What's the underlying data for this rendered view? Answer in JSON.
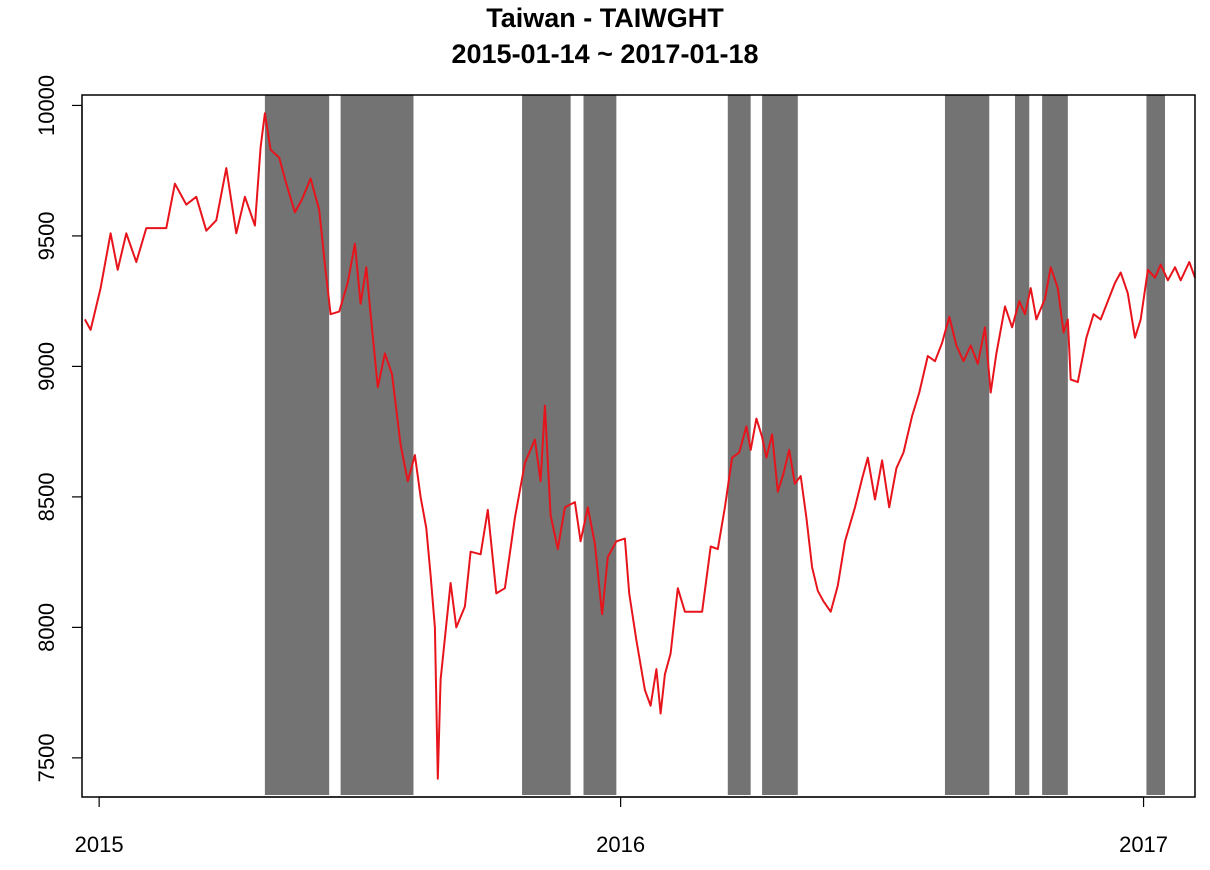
{
  "chart_data": {
    "type": "line",
    "title": "Taiwan - TAIWGHT",
    "subtitle": "2015-01-14 ~ 2017-01-18",
    "xlabel": "",
    "ylabel": "",
    "x_range": [
      "2014-12-20",
      "2017-02-06"
    ],
    "ylim": [
      7350,
      10040
    ],
    "y_ticks": [
      7500,
      8000,
      8500,
      9000,
      9500,
      10000
    ],
    "x_ticks": [
      {
        "date": "2015-01-01",
        "label": "2015"
      },
      {
        "date": "2016-01-01",
        "label": "2016"
      },
      {
        "date": "2017-01-01",
        "label": "2017"
      }
    ],
    "grid": false,
    "line_color": "#e8141c",
    "band_color": "#737373",
    "shaded_periods": [
      [
        "2015-04-27",
        "2015-06-11"
      ],
      [
        "2015-06-19",
        "2015-08-09"
      ],
      [
        "2015-10-24",
        "2015-11-27"
      ],
      [
        "2015-12-06",
        "2015-12-29"
      ],
      [
        "2016-03-16",
        "2016-04-01"
      ],
      [
        "2016-04-09",
        "2016-05-04"
      ],
      [
        "2016-08-15",
        "2016-09-15"
      ],
      [
        "2016-10-03",
        "2016-10-13"
      ],
      [
        "2016-10-22",
        "2016-11-09"
      ],
      [
        "2017-01-03",
        "2017-01-16"
      ]
    ],
    "series": [
      {
        "points": [
          [
            "2014-12-22",
            9180
          ],
          [
            "2014-12-26",
            9140
          ],
          [
            "2015-01-02",
            9300
          ],
          [
            "2015-01-09",
            9510
          ],
          [
            "2015-01-14",
            9370
          ],
          [
            "2015-01-20",
            9510
          ],
          [
            "2015-01-27",
            9400
          ],
          [
            "2015-02-03",
            9530
          ],
          [
            "2015-02-10",
            9530
          ],
          [
            "2015-02-17",
            9530
          ],
          [
            "2015-02-23",
            9700
          ],
          [
            "2015-03-03",
            9620
          ],
          [
            "2015-03-10",
            9650
          ],
          [
            "2015-03-17",
            9520
          ],
          [
            "2015-03-24",
            9560
          ],
          [
            "2015-03-31",
            9760
          ],
          [
            "2015-04-07",
            9510
          ],
          [
            "2015-04-13",
            9650
          ],
          [
            "2015-04-20",
            9540
          ],
          [
            "2015-04-24",
            9840
          ],
          [
            "2015-04-27",
            9970
          ],
          [
            "2015-05-01",
            9830
          ],
          [
            "2015-05-07",
            9800
          ],
          [
            "2015-05-12",
            9700
          ],
          [
            "2015-05-18",
            9590
          ],
          [
            "2015-05-23",
            9640
          ],
          [
            "2015-05-29",
            9720
          ],
          [
            "2015-06-04",
            9600
          ],
          [
            "2015-06-08",
            9390
          ],
          [
            "2015-06-12",
            9200
          ],
          [
            "2015-06-18",
            9210
          ],
          [
            "2015-06-24",
            9320
          ],
          [
            "2015-06-29",
            9470
          ],
          [
            "2015-07-03",
            9240
          ],
          [
            "2015-07-07",
            9380
          ],
          [
            "2015-07-10",
            9200
          ],
          [
            "2015-07-15",
            8920
          ],
          [
            "2015-07-20",
            9050
          ],
          [
            "2015-07-25",
            8970
          ],
          [
            "2015-07-31",
            8700
          ],
          [
            "2015-08-05",
            8560
          ],
          [
            "2015-08-10",
            8660
          ],
          [
            "2015-08-14",
            8500
          ],
          [
            "2015-08-18",
            8380
          ],
          [
            "2015-08-21",
            8200
          ],
          [
            "2015-08-24",
            8000
          ],
          [
            "2015-08-26",
            7420
          ],
          [
            "2015-08-28",
            7800
          ],
          [
            "2015-09-04",
            8170
          ],
          [
            "2015-09-08",
            8000
          ],
          [
            "2015-09-14",
            8080
          ],
          [
            "2015-09-18",
            8290
          ],
          [
            "2015-09-25",
            8280
          ],
          [
            "2015-09-30",
            8450
          ],
          [
            "2015-10-06",
            8130
          ],
          [
            "2015-10-12",
            8150
          ],
          [
            "2015-10-19",
            8420
          ],
          [
            "2015-10-26",
            8630
          ],
          [
            "2015-11-02",
            8720
          ],
          [
            "2015-11-06",
            8560
          ],
          [
            "2015-11-09",
            8850
          ],
          [
            "2015-11-13",
            8430
          ],
          [
            "2015-11-18",
            8300
          ],
          [
            "2015-11-23",
            8460
          ],
          [
            "2015-11-30",
            8480
          ],
          [
            "2015-12-04",
            8330
          ],
          [
            "2015-12-09",
            8460
          ],
          [
            "2015-12-14",
            8320
          ],
          [
            "2015-12-19",
            8050
          ],
          [
            "2015-12-23",
            8270
          ],
          [
            "2015-12-29",
            8330
          ],
          [
            "2016-01-04",
            8340
          ],
          [
            "2016-01-07",
            8130
          ],
          [
            "2016-01-12",
            7950
          ],
          [
            "2016-01-18",
            7760
          ],
          [
            "2016-01-22",
            7700
          ],
          [
            "2016-01-26",
            7840
          ],
          [
            "2016-01-29",
            7670
          ],
          [
            "2016-02-01",
            7820
          ],
          [
            "2016-02-05",
            7900
          ],
          [
            "2016-02-10",
            8150
          ],
          [
            "2016-02-15",
            8060
          ],
          [
            "2016-02-22",
            8060
          ],
          [
            "2016-02-27",
            8060
          ],
          [
            "2016-03-04",
            8310
          ],
          [
            "2016-03-09",
            8300
          ],
          [
            "2016-03-14",
            8460
          ],
          [
            "2016-03-19",
            8650
          ],
          [
            "2016-03-24",
            8670
          ],
          [
            "2016-03-29",
            8770
          ],
          [
            "2016-04-01",
            8680
          ],
          [
            "2016-04-05",
            8800
          ],
          [
            "2016-04-09",
            8730
          ],
          [
            "2016-04-12",
            8650
          ],
          [
            "2016-04-16",
            8740
          ],
          [
            "2016-04-20",
            8520
          ],
          [
            "2016-04-24",
            8590
          ],
          [
            "2016-04-28",
            8680
          ],
          [
            "2016-05-02",
            8550
          ],
          [
            "2016-05-06",
            8580
          ],
          [
            "2016-05-10",
            8420
          ],
          [
            "2016-05-14",
            8230
          ],
          [
            "2016-05-18",
            8140
          ],
          [
            "2016-05-22",
            8100
          ],
          [
            "2016-05-27",
            8060
          ],
          [
            "2016-06-01",
            8160
          ],
          [
            "2016-06-06",
            8330
          ],
          [
            "2016-06-13",
            8460
          ],
          [
            "2016-06-18",
            8570
          ],
          [
            "2016-06-22",
            8650
          ],
          [
            "2016-06-27",
            8490
          ],
          [
            "2016-07-02",
            8640
          ],
          [
            "2016-07-07",
            8460
          ],
          [
            "2016-07-12",
            8610
          ],
          [
            "2016-07-17",
            8670
          ],
          [
            "2016-07-23",
            8810
          ],
          [
            "2016-07-28",
            8900
          ],
          [
            "2016-08-03",
            9040
          ],
          [
            "2016-08-08",
            9020
          ],
          [
            "2016-08-13",
            9090
          ],
          [
            "2016-08-18",
            9190
          ],
          [
            "2016-08-23",
            9080
          ],
          [
            "2016-08-28",
            9020
          ],
          [
            "2016-09-02",
            9080
          ],
          [
            "2016-09-07",
            9010
          ],
          [
            "2016-09-12",
            9150
          ],
          [
            "2016-09-16",
            8900
          ],
          [
            "2016-09-20",
            9050
          ],
          [
            "2016-09-26",
            9230
          ],
          [
            "2016-10-01",
            9150
          ],
          [
            "2016-10-06",
            9250
          ],
          [
            "2016-10-10",
            9200
          ],
          [
            "2016-10-14",
            9300
          ],
          [
            "2016-10-18",
            9180
          ],
          [
            "2016-10-24",
            9260
          ],
          [
            "2016-10-28",
            9380
          ],
          [
            "2016-11-02",
            9300
          ],
          [
            "2016-11-06",
            9130
          ],
          [
            "2016-11-09",
            9180
          ],
          [
            "2016-11-11",
            8950
          ],
          [
            "2016-11-16",
            8940
          ],
          [
            "2016-11-22",
            9110
          ],
          [
            "2016-11-27",
            9200
          ],
          [
            "2016-12-02",
            9180
          ],
          [
            "2016-12-07",
            9250
          ],
          [
            "2016-12-12",
            9320
          ],
          [
            "2016-12-16",
            9360
          ],
          [
            "2016-12-21",
            9280
          ],
          [
            "2016-12-26",
            9110
          ],
          [
            "2016-12-30",
            9180
          ],
          [
            "2017-01-04",
            9370
          ],
          [
            "2017-01-09",
            9340
          ],
          [
            "2017-01-13",
            9390
          ],
          [
            "2017-01-18",
            9330
          ],
          [
            "2017-01-23",
            9380
          ],
          [
            "2017-01-27",
            9330
          ],
          [
            "2017-02-02",
            9400
          ],
          [
            "2017-02-06",
            9340
          ]
        ]
      }
    ]
  }
}
